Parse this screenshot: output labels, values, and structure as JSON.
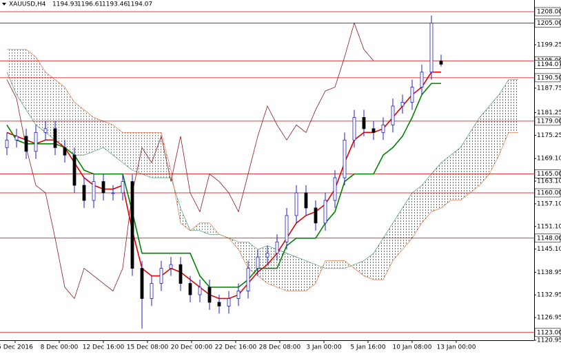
{
  "chart_data": {
    "type": "candlestick",
    "title": "XAUUSD,H4",
    "up_color": "#1a1ad6",
    "down_color": "#000000",
    "open": [
      1172,
      1174,
      1175,
      1171,
      1176,
      1177,
      1172,
      1170,
      1162,
      1158,
      1163,
      1160,
      1160,
      1163,
      1140,
      1132,
      1136,
      1140,
      1141,
      1136,
      1133,
      1135,
      1131,
      1130,
      1132,
      1134,
      1140,
      1143,
      1144,
      1147,
      1154,
      1160,
      1156,
      1152,
      1158,
      1164,
      1174,
      1180,
      1177,
      1176,
      1178,
      1183,
      1184,
      1188,
      1192,
      1194.93
    ],
    "high": [
      1176,
      1177,
      1177,
      1178,
      1179,
      1179,
      1174,
      1172,
      1164,
      1165,
      1165,
      1162,
      1165,
      1165,
      1142,
      1138,
      1142,
      1143,
      1143,
      1138,
      1137,
      1137,
      1133,
      1134,
      1136,
      1142,
      1145,
      1146,
      1149,
      1156,
      1162,
      1162,
      1158,
      1160,
      1166,
      1176,
      1182,
      1182,
      1179,
      1180,
      1185,
      1186,
      1190,
      1194,
      1207,
      1196.61
    ],
    "low": [
      1170,
      1172,
      1169,
      1169,
      1174,
      1170,
      1168,
      1160,
      1156,
      1156,
      1158,
      1158,
      1158,
      1138,
      1124,
      1130,
      1134,
      1138,
      1134,
      1131,
      1131,
      1129,
      1128,
      1128,
      1130,
      1132,
      1138,
      1141,
      1142,
      1145,
      1152,
      1154,
      1150,
      1150,
      1156,
      1162,
      1172,
      1175,
      1174,
      1174,
      1176,
      1181,
      1182,
      1186,
      1190,
      1193.46
    ],
    "close": [
      1174,
      1175,
      1171,
      1176,
      1177,
      1172,
      1170,
      1162,
      1158,
      1163,
      1160,
      1160,
      1163,
      1140,
      1132,
      1136,
      1140,
      1141,
      1136,
      1133,
      1135,
      1131,
      1130,
      1132,
      1134,
      1140,
      1143,
      1144,
      1147,
      1154,
      1160,
      1156,
      1152,
      1158,
      1164,
      1174,
      1180,
      1177,
      1176,
      1178,
      1183,
      1184,
      1188,
      1192,
      1205,
      1194.07
    ],
    "lines": [
      {
        "color": "#e00000",
        "values": [
          1176,
          1175,
          1174,
          1173,
          1174,
          1174,
          1172,
          1168,
          1164,
          1162,
          1161,
          1161,
          1162,
          1150,
          1140,
          1138,
          1138,
          1140,
          1139,
          1137,
          1135,
          1133,
          1132,
          1132,
          1133,
          1136,
          1139,
          1141,
          1144,
          1148,
          1152,
          1154,
          1155,
          1157,
          1161,
          1168,
          1174,
          1176,
          1176,
          1177,
          1180,
          1183,
          1186,
          1188,
          1192,
          1192
        ]
      },
      {
        "color": "#008000",
        "values": [
          1178,
          1174,
          1173,
          1173,
          1173,
          1173,
          1172,
          1170,
          1166,
          1165,
          1165,
          1165,
          1165,
          1155,
          1144,
          1144,
          1144,
          1144,
          1144,
          1144,
          1138,
          1135,
          1135,
          1135,
          1135,
          1137,
          1140,
          1140,
          1140,
          1146,
          1148,
          1148,
          1148,
          1152,
          1155,
          1163,
          1165,
          1165,
          1165,
          1170,
          1172,
          1175,
          1180,
          1186,
          1189,
          1189
        ]
      },
      {
        "color": "#8b1a1a",
        "values": [
          1190,
          1185,
          1172,
          1162,
          1160,
          1148,
          1135,
          1132,
          1140,
          1138,
          1136,
          1134,
          1140,
          1160,
          1172,
          1168,
          1175,
          1163,
          1175,
          1160,
          1155,
          1165,
          1163,
          1160,
          1155,
          1165,
          1175,
          1183,
          1178,
          1174,
          1178,
          1176,
          1182,
          1187,
          1188,
          1196,
          1205,
          1198,
          1195,
          null,
          null,
          null,
          null,
          null,
          null,
          null
        ]
      }
    ],
    "span_a": [
      1192,
      1186,
      1182,
      1178,
      1176,
      1174,
      1172,
      1170,
      1170,
      1171,
      1172,
      1170,
      1168,
      1166,
      1165,
      1164,
      1164,
      1164,
      1156,
      1150,
      1150,
      1149,
      1149,
      1148,
      1147,
      1147,
      1145,
      1146,
      1145,
      1144,
      1143,
      1142,
      1141,
      1140,
      1140,
      1140,
      1141,
      1142,
      1144,
      1148,
      1152,
      1156,
      1160,
      1162,
      1165,
      1168,
      1170,
      1172,
      1176,
      1180,
      1183,
      1186,
      1190,
      1190
    ],
    "span_b": [
      1198,
      1198,
      1198,
      1196,
      1192,
      1190,
      1188,
      1184,
      1182,
      1180,
      1179,
      1178,
      1176,
      1176,
      1176,
      1176,
      1176,
      1166,
      1152,
      1150,
      1152,
      1152,
      1149,
      1148,
      1145,
      1140,
      1138,
      1136,
      1135,
      1134,
      1134,
      1134,
      1136,
      1142,
      1142,
      1142,
      1140,
      1138,
      1137,
      1137,
      1142,
      1145,
      1148,
      1152,
      1155,
      1156,
      1158,
      1158,
      1160,
      1162,
      1165,
      1170,
      1176,
      1176
    ],
    "cloud_up_color": "#2e8b57",
    "cloud_down_color": "#e0602a",
    "level_color": "#c00000",
    "levels": [
      {
        "value": 1208,
        "label": "1208.00"
      },
      {
        "value": 1205,
        "label": "1205.00"
      },
      {
        "value": 1195,
        "label": "1195.00"
      },
      {
        "value": 1190.5,
        "label": "1190.50"
      },
      {
        "value": 1179,
        "label": "1179.00"
      },
      {
        "value": 1165,
        "label": "1165.00"
      },
      {
        "value": 1160,
        "label": "1160.00"
      },
      {
        "value": 1148,
        "label": "1148.00"
      },
      {
        "value": 1123,
        "label": "1123.00"
      }
    ],
    "ylim": [
      1120.95,
      1208
    ],
    "yticks": [
      1199.25,
      {
        "value": 1187.75,
        "label": "1187.75"
      },
      1181.25,
      1175.25,
      {
        "value": 1169.1,
        "label": "1169.10"
      },
      {
        "value": 1163.1,
        "label": "1163.10"
      },
      {
        "value": 1157.1,
        "label": "1157.10"
      },
      {
        "value": 1151.1,
        "label": "1151.10"
      },
      {
        "value": 1145.1,
        "label": "1145.10"
      },
      1138.95,
      1132.95,
      1126.95,
      1120.95
    ],
    "xtick_labels": [
      "5 Dec 2016",
      "8 Dec 00:00",
      "12 Dec 16:00",
      "15 Dec 08:00",
      "20 Dec 00:00",
      "22 Dec 16:00",
      "28 Dec 08:00",
      "3 Jan 00:00",
      "5 Jan 16:00",
      "10 Jan 08:00",
      "13 Jan 00:00"
    ]
  }
}
